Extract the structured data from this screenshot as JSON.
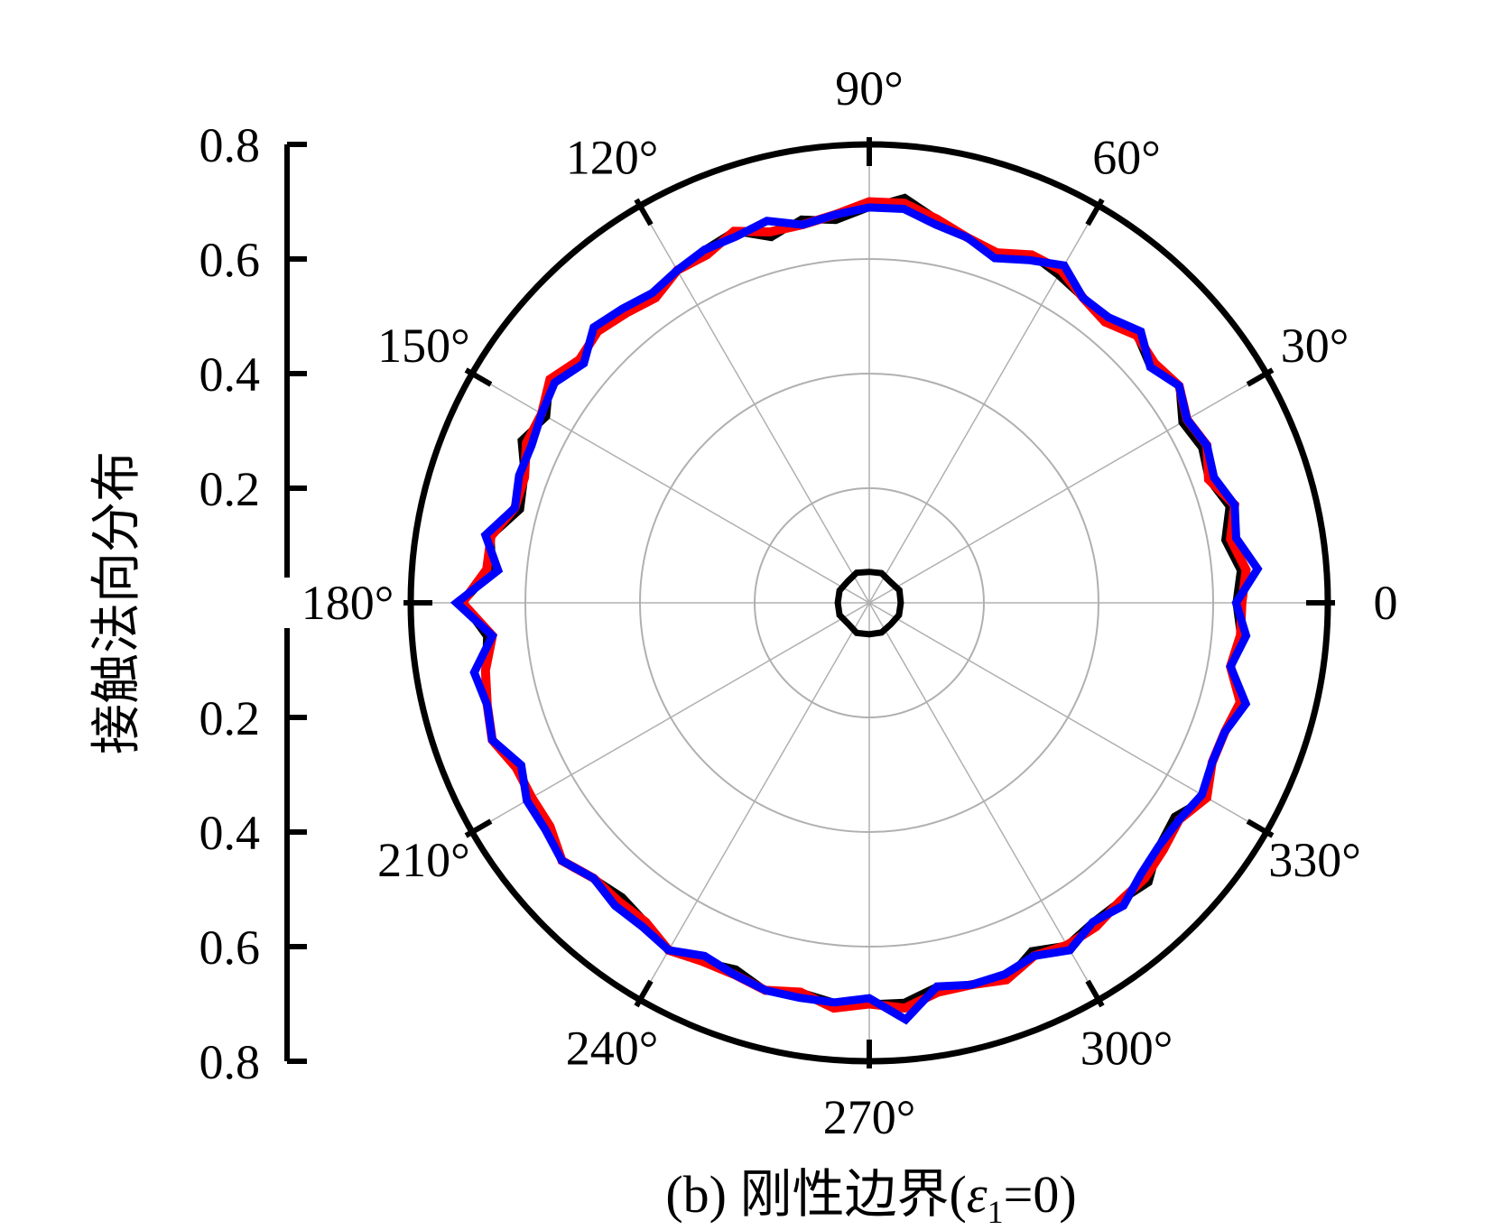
{
  "chart_data": {
    "type": "polar-line",
    "caption": {
      "prefix": "(b) 刚性边界(",
      "symbol": "ε",
      "subscript": "1",
      "suffix": "=0)"
    },
    "ylabel": "接触法向分布",
    "rlim": [
      0,
      0.8
    ],
    "radial_ticks_upper": [
      "0.8",
      "0.6",
      "0.4",
      "0.2"
    ],
    "radial_ticks_lower": [
      "0.2",
      "0.4",
      "0.6",
      "0.8"
    ],
    "radial_tick_values": [
      0.8,
      0.6,
      0.4,
      0.2
    ],
    "angle_labels": [
      "0",
      "30°",
      "60°",
      "90°",
      "120°",
      "150°",
      "180°",
      "210°",
      "240°",
      "270°",
      "300°",
      "330°"
    ],
    "grid": true,
    "legend": "none",
    "colors": {
      "black": "#000000",
      "red": "#ff0000",
      "blue": "#0000ff",
      "grid": "#b0b0b0"
    },
    "series": [
      {
        "color": "black",
        "theta_deg": [
          0,
          5,
          10,
          15,
          20,
          25,
          30,
          35,
          40,
          45,
          50,
          55,
          60,
          65,
          70,
          75,
          80,
          85,
          90,
          95,
          100,
          105,
          110,
          115,
          120,
          125,
          130,
          135,
          140,
          145,
          150,
          155,
          160,
          165,
          170,
          175,
          180,
          185,
          190,
          195,
          200,
          205,
          210,
          215,
          220,
          225,
          230,
          235,
          240,
          245,
          250,
          255,
          260,
          265,
          270,
          275,
          280,
          285,
          290,
          295,
          300,
          305,
          310,
          315,
          320,
          325,
          330,
          335,
          340,
          345,
          350,
          355
        ],
        "r": [
          0.64,
          0.65,
          0.63,
          0.65,
          0.63,
          0.64,
          0.63,
          0.66,
          0.64,
          0.66,
          0.64,
          0.65,
          0.66,
          0.67,
          0.64,
          0.66,
          0.68,
          0.71,
          0.69,
          0.67,
          0.68,
          0.66,
          0.69,
          0.68,
          0.67,
          0.66,
          0.66,
          0.68,
          0.65,
          0.68,
          0.65,
          0.67,
          0.64,
          0.63,
          0.67,
          0.66,
          0.71,
          0.67,
          0.68,
          0.69,
          0.7,
          0.67,
          0.69,
          0.68,
          0.7,
          0.68,
          0.67,
          0.68,
          0.7,
          0.69,
          0.68,
          0.7,
          0.69,
          0.7,
          0.7,
          0.7,
          0.68,
          0.69,
          0.7,
          0.67,
          0.69,
          0.68,
          0.68,
          0.69,
          0.66,
          0.65,
          0.68,
          0.66,
          0.66,
          0.67,
          0.64,
          0.65
        ]
      },
      {
        "color": "red",
        "theta_deg": [
          0,
          5,
          10,
          15,
          20,
          25,
          30,
          35,
          40,
          45,
          50,
          55,
          60,
          65,
          70,
          75,
          80,
          85,
          90,
          95,
          100,
          105,
          110,
          115,
          120,
          125,
          130,
          135,
          140,
          145,
          150,
          155,
          160,
          165,
          170,
          175,
          180,
          185,
          190,
          195,
          200,
          205,
          210,
          215,
          220,
          225,
          230,
          235,
          240,
          245,
          250,
          255,
          260,
          265,
          270,
          275,
          280,
          285,
          290,
          295,
          300,
          305,
          310,
          315,
          320,
          325,
          330,
          335,
          340,
          345,
          350,
          355
        ],
        "r": [
          0.65,
          0.66,
          0.64,
          0.66,
          0.63,
          0.65,
          0.64,
          0.66,
          0.65,
          0.66,
          0.64,
          0.65,
          0.67,
          0.67,
          0.65,
          0.66,
          0.68,
          0.7,
          0.7,
          0.68,
          0.67,
          0.67,
          0.69,
          0.67,
          0.67,
          0.65,
          0.66,
          0.67,
          0.66,
          0.68,
          0.66,
          0.66,
          0.64,
          0.64,
          0.67,
          0.67,
          0.71,
          0.66,
          0.68,
          0.69,
          0.7,
          0.68,
          0.68,
          0.68,
          0.7,
          0.68,
          0.68,
          0.68,
          0.7,
          0.69,
          0.69,
          0.7,
          0.69,
          0.71,
          0.7,
          0.71,
          0.69,
          0.69,
          0.7,
          0.68,
          0.69,
          0.69,
          0.68,
          0.68,
          0.67,
          0.66,
          0.68,
          0.66,
          0.66,
          0.67,
          0.64,
          0.65
        ]
      },
      {
        "color": "blue",
        "theta_deg": [
          0,
          5,
          10,
          15,
          20,
          25,
          30,
          35,
          40,
          45,
          50,
          55,
          60,
          65,
          70,
          75,
          80,
          85,
          90,
          95,
          100,
          105,
          110,
          115,
          120,
          125,
          130,
          135,
          140,
          145,
          150,
          155,
          160,
          165,
          170,
          175,
          180,
          185,
          190,
          195,
          200,
          205,
          210,
          215,
          220,
          225,
          230,
          235,
          240,
          245,
          250,
          255,
          260,
          265,
          270,
          275,
          280,
          285,
          290,
          295,
          300,
          305,
          310,
          315,
          320,
          325,
          330,
          335,
          340,
          345,
          350,
          355
        ],
        "r": [
          0.64,
          0.68,
          0.65,
          0.66,
          0.64,
          0.65,
          0.64,
          0.66,
          0.64,
          0.67,
          0.65,
          0.65,
          0.68,
          0.66,
          0.64,
          0.66,
          0.67,
          0.69,
          0.69,
          0.68,
          0.67,
          0.69,
          0.68,
          0.68,
          0.67,
          0.66,
          0.67,
          0.68,
          0.65,
          0.67,
          0.66,
          0.65,
          0.65,
          0.64,
          0.68,
          0.65,
          0.72,
          0.66,
          0.7,
          0.69,
          0.7,
          0.67,
          0.69,
          0.69,
          0.7,
          0.68,
          0.69,
          0.69,
          0.7,
          0.68,
          0.69,
          0.7,
          0.7,
          0.7,
          0.69,
          0.73,
          0.68,
          0.69,
          0.69,
          0.68,
          0.7,
          0.68,
          0.69,
          0.67,
          0.66,
          0.66,
          0.67,
          0.66,
          0.66,
          0.68,
          0.64,
          0.66
        ]
      },
      {
        "color": "black",
        "theta_deg": [
          0,
          22.5,
          45,
          67.5,
          90,
          112.5,
          135,
          157.5,
          180,
          202.5,
          225,
          247.5,
          270,
          292.5,
          315,
          337.5
        ],
        "r": [
          0.055,
          0.057,
          0.052,
          0.056,
          0.054,
          0.057,
          0.053,
          0.056,
          0.055,
          0.056,
          0.052,
          0.057,
          0.055,
          0.056,
          0.053,
          0.056
        ]
      }
    ]
  }
}
